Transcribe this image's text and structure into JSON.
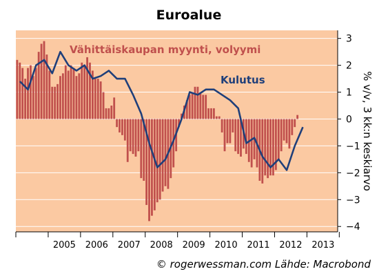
{
  "chart_data": {
    "type": "bar+line",
    "title": "Euroalue",
    "ylabel": "% v/v, 3 kk:n keskiarvo",
    "ylim": [
      -4.2,
      3.3
    ],
    "yticks": [
      3,
      2,
      1,
      0,
      -1,
      -2,
      -3,
      -4
    ],
    "x_years": [
      "2005",
      "2006",
      "2007",
      "2008",
      "2009",
      "2010",
      "2011",
      "2012",
      "2013"
    ],
    "x_start": 2004.0,
    "x_end": 2013.95,
    "colors": {
      "plot_bg": "#fbc9a2",
      "bar": "#c0504d",
      "line": "#1f3f7a",
      "grid": "#ffffff"
    },
    "series": [
      {
        "name": "Vähittäiskaupan myynti, volyymi",
        "type": "bar",
        "period": "monthly",
        "start": 2004.0,
        "values": [
          2.2,
          2.1,
          1.9,
          1.5,
          1.9,
          2.0,
          1.6,
          1.9,
          2.5,
          2.8,
          2.9,
          2.4,
          1.8,
          1.2,
          1.2,
          1.3,
          1.6,
          1.7,
          2.0,
          1.8,
          2.0,
          1.9,
          1.6,
          1.7,
          2.1,
          2.0,
          2.3,
          2.1,
          1.8,
          1.5,
          1.5,
          1.4,
          1.0,
          0.4,
          0.4,
          0.5,
          0.8,
          -0.3,
          -0.5,
          -0.6,
          -0.8,
          -1.6,
          -1.2,
          -1.3,
          -1.4,
          -1.2,
          -2.2,
          -2.3,
          -3.2,
          -3.8,
          -3.6,
          -3.4,
          -3.1,
          -3.0,
          -2.7,
          -2.5,
          -2.6,
          -2.2,
          -1.8,
          -1.2,
          -0.3,
          0.2,
          0.5,
          0.7,
          0.9,
          1.0,
          1.2,
          1.2,
          1.0,
          0.9,
          0.9,
          0.4,
          0.4,
          0.4,
          0.1,
          0.1,
          -0.5,
          -1.2,
          -0.9,
          -0.9,
          -0.5,
          -1.2,
          -1.3,
          -1.4,
          -1.1,
          -1.3,
          -1.6,
          -1.8,
          -1.5,
          -1.8,
          -2.3,
          -2.4,
          -2.1,
          -2.2,
          -2.1,
          -2.1,
          -1.9,
          -1.5,
          -1.2,
          -0.8,
          -0.9,
          -1.1,
          -0.6,
          -0.3,
          0.15
        ]
      },
      {
        "name": "Kulutus",
        "type": "line",
        "period": "quarterly",
        "start": 2004.0,
        "values": [
          1.4,
          1.1,
          2.0,
          2.2,
          1.7,
          2.5,
          2.0,
          1.8,
          2.0,
          1.5,
          1.6,
          1.8,
          1.5,
          1.5,
          0.9,
          0.2,
          -0.9,
          -1.8,
          -1.5,
          -0.8,
          0.0,
          1.0,
          0.9,
          1.1,
          1.1,
          0.9,
          0.7,
          0.4,
          -0.9,
          -0.7,
          -1.4,
          -1.8,
          -1.5,
          -1.9,
          -1.0,
          -0.3
        ]
      }
    ],
    "annotations": {
      "retail_label": "Vähittäiskaupan myynti, volyymi",
      "consumption_label": "Kulutus"
    }
  },
  "credit": "© rogerwessman.com Lähde: Macrobond"
}
